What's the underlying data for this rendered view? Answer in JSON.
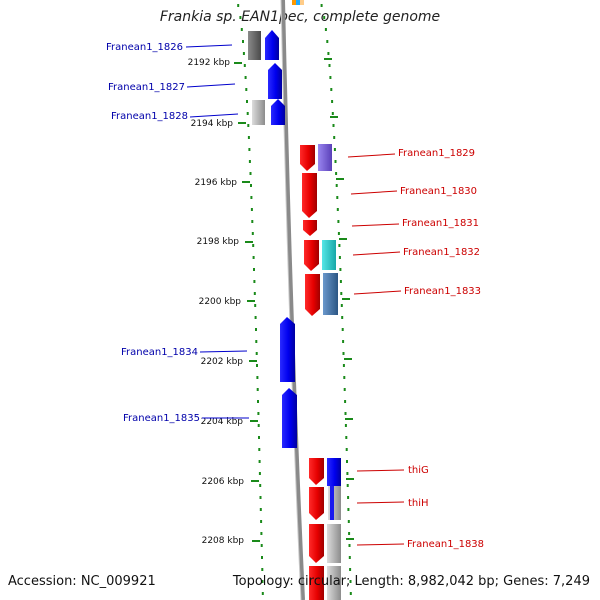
{
  "title": "Frankia sp. EAN1pec, complete genome",
  "accession": "Accession: NC_009921",
  "topology": "Topology: circular; Length: 8,982,042 bp; Genes: 7,249",
  "kbp_labels": [
    "2192 kbp",
    "2194 kbp",
    "2196 kbp",
    "2198 kbp",
    "2200 kbp",
    "2202 kbp",
    "2204 kbp",
    "2206 kbp",
    "2208 kbp"
  ],
  "genes_reverse": [
    {
      "name": "Franean1_1826",
      "color": "#0000ff"
    },
    {
      "name": "Franean1_1827",
      "color": "#0000ff"
    },
    {
      "name": "Franean1_1828",
      "color": "#0000ff"
    },
    {
      "name": "Franean1_1834",
      "color": "#0000ff"
    },
    {
      "name": "Franean1_1835",
      "color": "#0000ff"
    }
  ],
  "genes_forward": [
    {
      "name": "Franean1_1829",
      "color": "#ff0000"
    },
    {
      "name": "Franean1_1830",
      "color": "#ff0000"
    },
    {
      "name": "Franean1_1831",
      "color": "#ff0000"
    },
    {
      "name": "Franean1_1832",
      "color": "#ff0000"
    },
    {
      "name": "Franean1_1833",
      "color": "#ff0000"
    },
    {
      "name": "thiG",
      "color": "#ff0000"
    },
    {
      "name": "thiH",
      "color": "#ff0000"
    },
    {
      "name": "Franean1_1838",
      "color": "#ff0000"
    }
  ],
  "colors": {
    "reverse_strand": "#0000ff",
    "forward_strand": "#ff0000",
    "label_reverse": "#0000aa",
    "label_forward": "#cc0000",
    "ticks": "#1a8a1a",
    "backbone": "#888888",
    "cog_purple": "#7a5fd8",
    "cog_cyan": "#22cccc",
    "cog_steelblue": "#3f72a8",
    "cog_gray": "#aaaaaa",
    "cog_darkgray": "#6b6b6b",
    "cog_blue": "#0000ff"
  }
}
